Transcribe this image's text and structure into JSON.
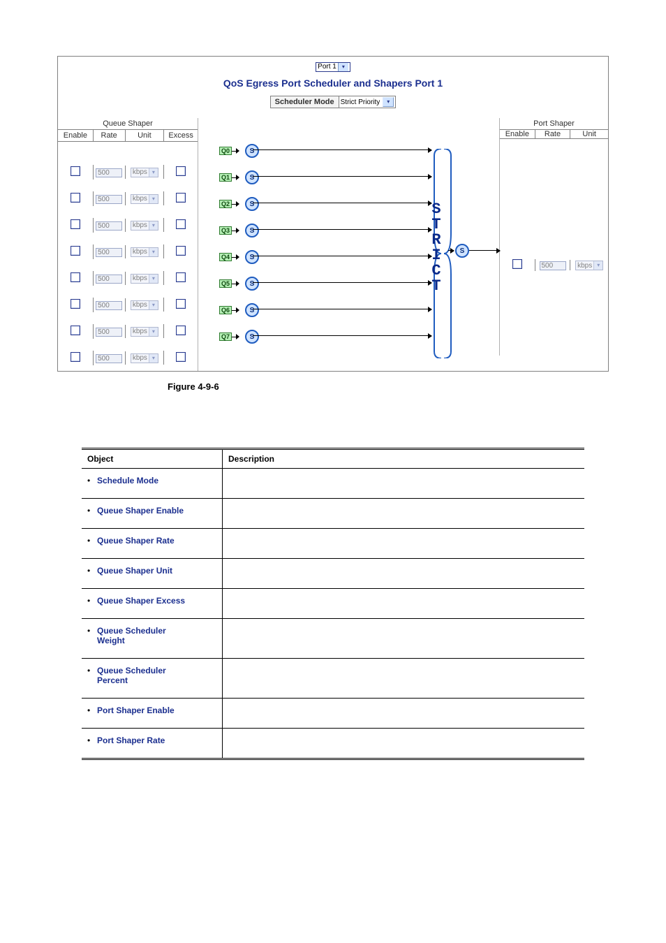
{
  "panel": {
    "port_select": "Port 1",
    "title": "QoS Egress Port Scheduler and Shapers  Port 1",
    "sched_mode_label": "Scheduler Mode",
    "sched_mode_value": "Strict Priority"
  },
  "queue_shaper": {
    "title": "Queue Shaper",
    "headers": {
      "enable": "Enable",
      "rate": "Rate",
      "unit": "Unit",
      "excess": "Excess"
    },
    "rows": [
      {
        "rate": "500",
        "unit": "kbps"
      },
      {
        "rate": "500",
        "unit": "kbps"
      },
      {
        "rate": "500",
        "unit": "kbps"
      },
      {
        "rate": "500",
        "unit": "kbps"
      },
      {
        "rate": "500",
        "unit": "kbps"
      },
      {
        "rate": "500",
        "unit": "kbps"
      },
      {
        "rate": "500",
        "unit": "kbps"
      },
      {
        "rate": "500",
        "unit": "kbps"
      }
    ]
  },
  "diagram": {
    "queues": [
      "Q0",
      "Q1",
      "Q2",
      "Q3",
      "Q4",
      "Q5",
      "Q6",
      "Q7"
    ],
    "s_label": "S",
    "strict_letters": [
      "S",
      "T",
      "R",
      "I",
      "C",
      "T"
    ],
    "out_s": "S"
  },
  "port_shaper": {
    "title": "Port Shaper",
    "headers": {
      "enable": "Enable",
      "rate": "Rate",
      "unit": "Unit"
    },
    "row": {
      "rate": "500",
      "unit": "kbps"
    }
  },
  "caption": "Figure 4-9-6",
  "desc_table": {
    "headers": {
      "object": "Object",
      "description": "Description"
    },
    "rows": [
      {
        "l1": "Schedule Mode",
        "l2": ""
      },
      {
        "l1": "Queue Shaper Enable",
        "l2": ""
      },
      {
        "l1": "Queue Shaper Rate",
        "l2": ""
      },
      {
        "l1": "Queue Shaper Unit",
        "l2": ""
      },
      {
        "l1": "Queue Shaper Excess",
        "l2": ""
      },
      {
        "l1": "Queue Scheduler",
        "l2": "Weight"
      },
      {
        "l1": "Queue Scheduler",
        "l2": "Percent"
      },
      {
        "l1": "Port Shaper Enable",
        "l2": ""
      },
      {
        "l1": "Port Shaper Rate",
        "l2": ""
      }
    ]
  },
  "style": {
    "accent": "#1b2f8f",
    "green_fill": "#b7f0b7",
    "green_border": "#2e7a2e",
    "blue_fill": "#cfe3ff",
    "blue_border": "#1f5cbf"
  }
}
